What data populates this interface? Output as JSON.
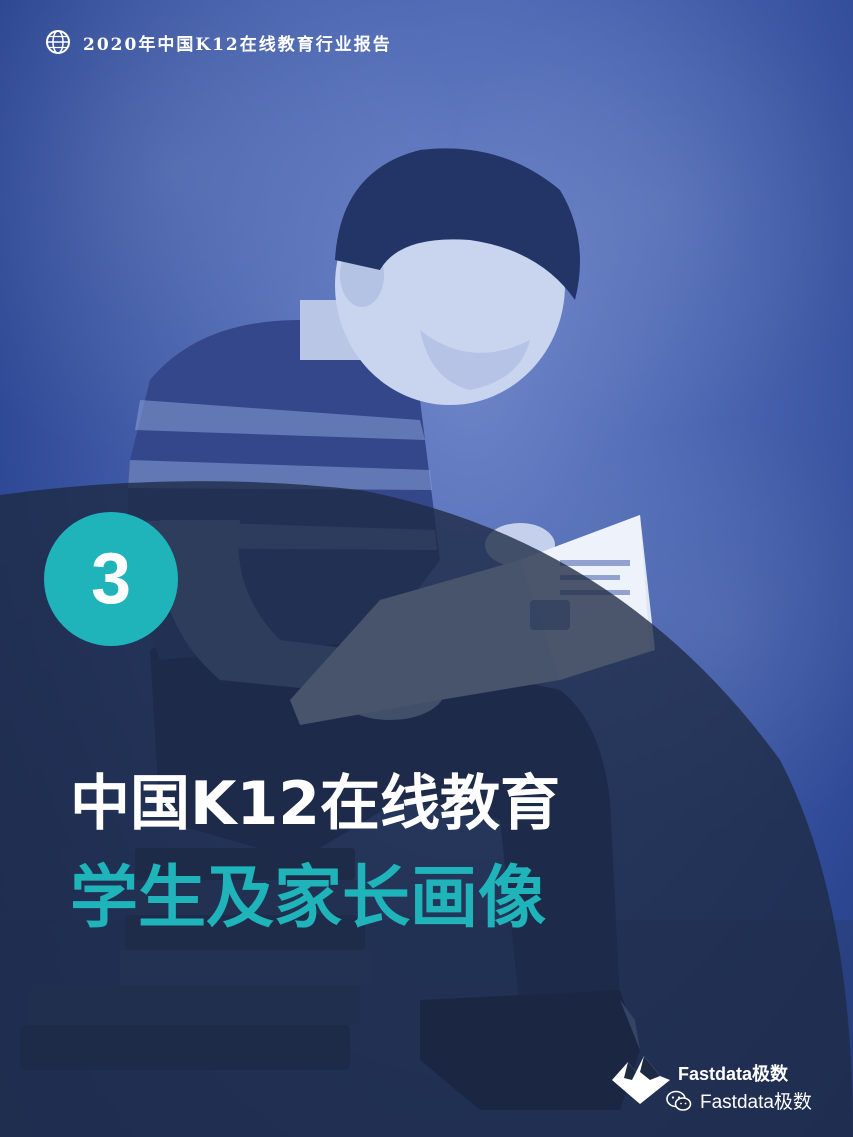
{
  "header": {
    "title": "2020年中国K12在线教育行业报告",
    "icon": "globe-icon"
  },
  "chapter": {
    "number": "3"
  },
  "title": {
    "line1": "中国K12在线教育",
    "line2": "学生及家长画像"
  },
  "brand": {
    "logo_text": "Fastdata极数",
    "wechat_name": "Fastdata极数"
  },
  "colors": {
    "accent": "#1fb4ba",
    "background": "#3c5aa6",
    "overlay": "#1e2a44"
  }
}
